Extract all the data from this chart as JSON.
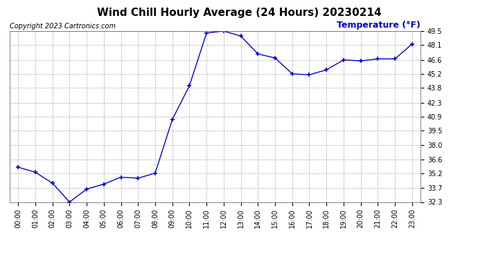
{
  "title": "Wind Chill Hourly Average (24 Hours) 20230214",
  "ylabel": "Temperature (°F)",
  "copyright": "Copyright 2023 Cartronics.com",
  "line_color": "#0000cc",
  "background_color": "#ffffff",
  "plot_bg_color": "#ffffff",
  "hours": [
    0,
    1,
    2,
    3,
    4,
    5,
    6,
    7,
    8,
    9,
    10,
    11,
    12,
    13,
    14,
    15,
    16,
    17,
    18,
    19,
    20,
    21,
    22,
    23
  ],
  "values": [
    35.8,
    35.3,
    34.2,
    32.3,
    33.6,
    34.1,
    34.8,
    34.7,
    35.2,
    40.6,
    44.0,
    49.3,
    49.5,
    49.0,
    47.2,
    46.8,
    45.2,
    45.1,
    45.6,
    46.6,
    46.5,
    46.7,
    46.7,
    48.2
  ],
  "ylim_min": 32.3,
  "ylim_max": 49.5,
  "yticks": [
    32.3,
    33.7,
    35.2,
    36.6,
    38.0,
    39.5,
    40.9,
    42.3,
    43.8,
    45.2,
    46.6,
    48.1,
    49.5
  ],
  "grid_color": "#aaaaaa",
  "marker": "+",
  "marker_size": 5,
  "title_fontsize": 11,
  "tick_fontsize": 7,
  "copyright_fontsize": 7,
  "ylabel_fontsize": 9
}
